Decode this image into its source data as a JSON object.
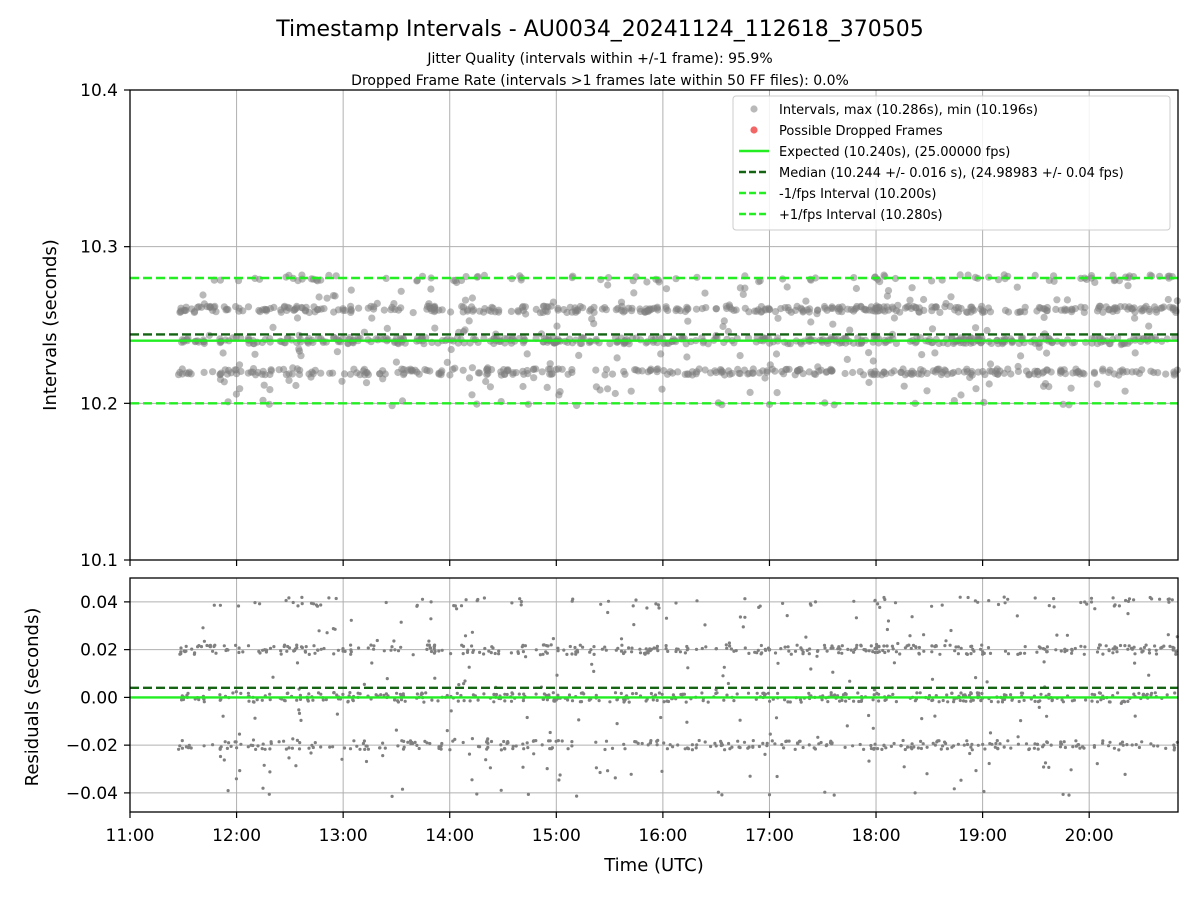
{
  "title": "Timestamp Intervals - AU0034_20241124_112618_370505",
  "subtitle_1": "Jitter Quality (intervals within +/-1 frame): 95.9%",
  "subtitle_2": "Dropped Frame Rate (intervals >1 frames late within 50 FF files): 0.0%",
  "chart_data": [
    {
      "type": "scatter",
      "panel": "intervals",
      "ylabel": "Intervals (seconds)",
      "xlabel": "",
      "xlim": [
        "11:00",
        "20:50"
      ],
      "ylim": [
        10.1,
        10.4
      ],
      "yticks": [
        "10.1",
        "10.2",
        "10.3",
        "10.4"
      ],
      "grid": true,
      "legend_position": "upper-right",
      "data_time_range": [
        "11:27",
        "20:50"
      ],
      "clusters": [
        {
          "value": 10.22,
          "weight": 0.22
        },
        {
          "value": 10.24,
          "weight": 0.3
        },
        {
          "value": 10.26,
          "weight": 0.26
        },
        {
          "value": 10.28,
          "weight": 0.07
        },
        {
          "value": 10.2,
          "weight": 0.01
        }
      ],
      "max": 10.286,
      "min": 10.196,
      "point_color": "#808080",
      "dropped_frames_color": "#f04040",
      "lines": [
        {
          "name": "Expected",
          "y": 10.24,
          "style": "solid",
          "color": "#22ee22"
        },
        {
          "name": "Median",
          "y": 10.244,
          "style": "dashed",
          "color": "#146414"
        },
        {
          "name": "-1/fps Interval",
          "y": 10.2,
          "style": "dashed",
          "color": "#22ee22"
        },
        {
          "name": "+1/fps Interval",
          "y": 10.28,
          "style": "dashed",
          "color": "#22ee22"
        }
      ],
      "legend": [
        "Intervals, max (10.286s), min (10.196s)",
        "Possible Dropped Frames",
        "Expected (10.240s), (25.00000 fps)",
        "Median (10.244 +/- 0.016 s), (24.98983 +/- 0.04 fps)",
        "-1/fps Interval (10.200s)",
        "+1/fps Interval (10.280s)"
      ]
    },
    {
      "type": "scatter",
      "panel": "residuals",
      "ylabel": "Residuals (seconds)",
      "xlabel": "Time (UTC)",
      "xlim": [
        "11:00",
        "20:50"
      ],
      "ylim": [
        -0.048,
        0.05
      ],
      "yticks": [
        "−0.04",
        "−0.02",
        "0.00",
        "0.02",
        "0.04"
      ],
      "ytick_values": [
        -0.04,
        -0.02,
        0.0,
        0.02,
        0.04
      ],
      "xticks": [
        "11:00",
        "12:00",
        "13:00",
        "14:00",
        "15:00",
        "16:00",
        "17:00",
        "18:00",
        "19:00",
        "20:00"
      ],
      "grid": true,
      "point_color": "#808080",
      "lines": [
        {
          "name": "Expected",
          "y": 0.0,
          "style": "solid",
          "color": "#22ee22"
        },
        {
          "name": "Median",
          "y": 0.004,
          "style": "dashed",
          "color": "#146414"
        }
      ]
    }
  ]
}
